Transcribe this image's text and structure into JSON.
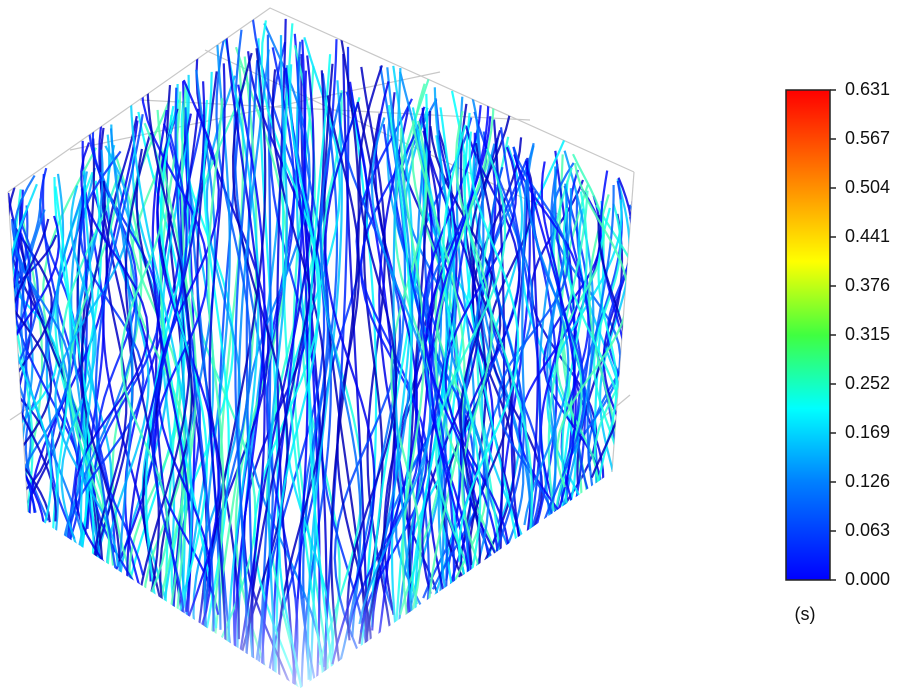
{
  "colorbar": {
    "ticks": [
      "0.631",
      "0.567",
      "0.504",
      "0.441",
      "0.376",
      "0.315",
      "0.252",
      "0.169",
      "0.126",
      "0.063",
      "0.000"
    ],
    "unit": "(s)"
  }
}
